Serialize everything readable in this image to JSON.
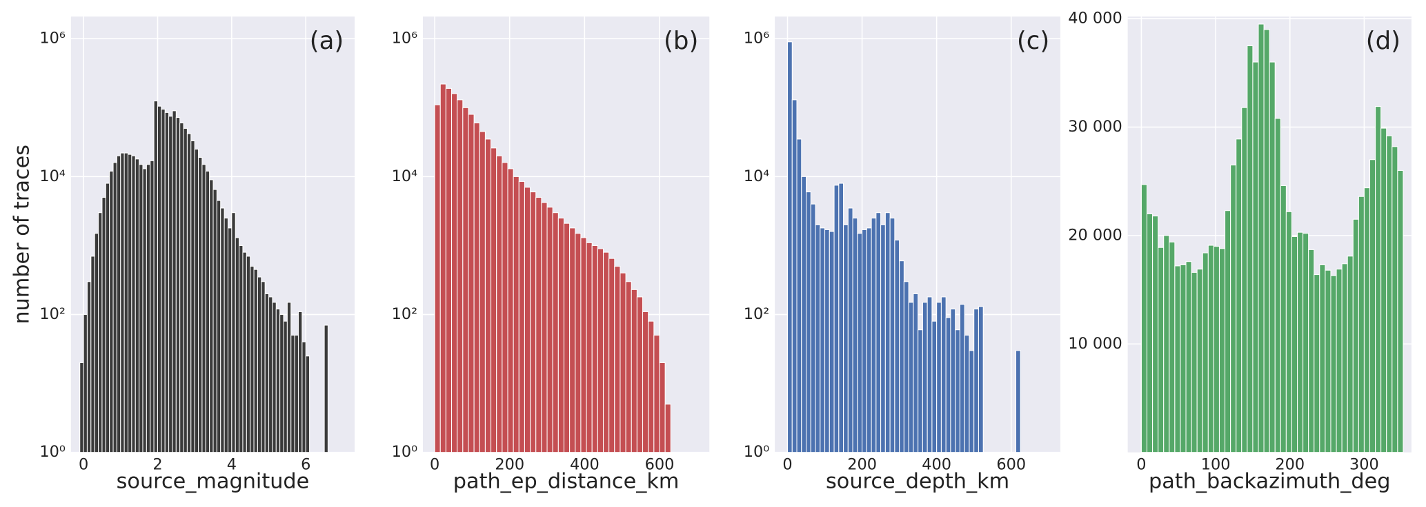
{
  "chart_data": [
    {
      "type": "histogram",
      "xlabel": "source_magnitude",
      "ylabel": "number of traces",
      "annotation": "(a)",
      "color": "#3a3a3a",
      "log_scale": true,
      "grid": true,
      "bins": [
        -0.1,
        0,
        0.1,
        0.2,
        0.3,
        0.4,
        0.5,
        0.6,
        0.7,
        0.8,
        0.9,
        1,
        1.1,
        1.2,
        1.3,
        1.4,
        1.5,
        1.6,
        1.7,
        1.8,
        1.9,
        2,
        2.1,
        2.2,
        2.3,
        2.4,
        2.5,
        2.6,
        2.7,
        2.8,
        2.9,
        3,
        3.1,
        3.2,
        3.3,
        3.4,
        3.5,
        3.6,
        3.7,
        3.8,
        3.9,
        4,
        4.1,
        4.2,
        4.3,
        4.4,
        4.5,
        4.6,
        4.7,
        4.8,
        4.9,
        5,
        5.1,
        5.2,
        5.3,
        5.4,
        5.5,
        5.6,
        5.7,
        5.8,
        5.9,
        6,
        6.1,
        6.2,
        6.3,
        6.4,
        6.5,
        6.6
      ],
      "values": [
        20,
        100,
        300,
        700,
        1500,
        3000,
        5000,
        8000,
        12000,
        16000,
        20000,
        22000,
        22000,
        21000,
        20000,
        18000,
        15000,
        13000,
        15000,
        17000,
        125000,
        105000,
        95000,
        85000,
        75000,
        90000,
        72000,
        60000,
        50000,
        42000,
        33000,
        25000,
        19000,
        15000,
        12000,
        9000,
        6500,
        4500,
        3500,
        2500,
        1800,
        3000,
        1300,
        1000,
        800,
        700,
        500,
        450,
        350,
        300,
        200,
        180,
        150,
        120,
        100,
        80,
        150,
        50,
        50,
        110,
        40,
        25,
        0,
        0,
        0,
        0,
        70
      ],
      "xlim": [
        -0.34,
        7.32
      ],
      "xticks": [
        0,
        2,
        4,
        6
      ],
      "ylim": [
        1,
        2100000
      ],
      "yticks": [
        {
          "value": 1,
          "label": "10⁰"
        },
        {
          "value": 100,
          "label": "10²"
        },
        {
          "value": 10000,
          "label": "10⁴"
        },
        {
          "value": 1000000,
          "label": "10⁶"
        }
      ]
    },
    {
      "type": "histogram",
      "xlabel": "path_ep_distance_km",
      "annotation": "(b)",
      "color": "#c44e52",
      "log_scale": true,
      "grid": true,
      "bins": [
        0,
        15,
        30,
        45,
        60,
        75,
        90,
        105,
        120,
        135,
        150,
        165,
        180,
        195,
        210,
        225,
        240,
        255,
        270,
        285,
        300,
        315,
        330,
        345,
        360,
        375,
        390,
        405,
        420,
        435,
        450,
        465,
        480,
        495,
        510,
        525,
        540,
        555,
        570,
        585,
        600,
        615,
        630
      ],
      "values": [
        110000,
        220000,
        190000,
        160000,
        130000,
        100000,
        80000,
        60000,
        45000,
        35000,
        26000,
        20000,
        16000,
        13000,
        10000,
        8500,
        7000,
        6000,
        5000,
        4200,
        3600,
        3000,
        2500,
        2100,
        1800,
        1500,
        1300,
        1100,
        1000,
        900,
        800,
        650,
        500,
        400,
        300,
        230,
        180,
        110,
        80,
        50,
        20,
        5
      ],
      "xlim": [
        -31.5,
        733
      ],
      "xticks": [
        0,
        200,
        400,
        600
      ],
      "ylim": [
        1,
        2100000
      ],
      "yticks": [
        {
          "value": 1,
          "label": "10⁰"
        },
        {
          "value": 100,
          "label": "10²"
        },
        {
          "value": 10000,
          "label": "10⁴"
        },
        {
          "value": 1000000,
          "label": "10⁶"
        }
      ]
    },
    {
      "type": "histogram",
      "xlabel": "source_depth_km",
      "annotation": "(c)",
      "color": "#4c72b0",
      "log_scale": true,
      "grid": true,
      "bins": [
        0,
        12.5,
        25,
        37.5,
        50,
        62.5,
        75,
        87.5,
        100,
        112.5,
        125,
        137.5,
        150,
        162.5,
        175,
        187.5,
        200,
        212.5,
        225,
        237.5,
        250,
        262.5,
        275,
        287.5,
        300,
        312.5,
        325,
        337.5,
        350,
        362.5,
        375,
        387.5,
        400,
        412.5,
        425,
        437.5,
        450,
        462.5,
        475,
        487.5,
        500,
        512.5,
        525,
        537.5,
        550,
        562.5,
        575,
        587.5,
        600,
        612.5,
        625
      ],
      "values": [
        900000,
        130000,
        35000,
        10000,
        6000,
        4000,
        2000,
        1800,
        1700,
        1600,
        7500,
        8000,
        2000,
        3500,
        2500,
        1500,
        1700,
        1800,
        2500,
        3000,
        2000,
        3000,
        2500,
        1200,
        600,
        300,
        150,
        200,
        60,
        150,
        180,
        80,
        150,
        180,
        90,
        120,
        60,
        140,
        50,
        30,
        120,
        130,
        0,
        0,
        0,
        0,
        0,
        0,
        0,
        30
      ],
      "xlim": [
        -34,
        732
      ],
      "xticks": [
        0,
        200,
        400,
        600
      ],
      "ylim": [
        1,
        2100000
      ],
      "yticks": [
        {
          "value": 1,
          "label": "10⁰"
        },
        {
          "value": 100,
          "label": "10²"
        },
        {
          "value": 10000,
          "label": "10⁴"
        },
        {
          "value": 1000000,
          "label": "10⁶"
        }
      ]
    },
    {
      "type": "histogram",
      "xlabel": "path_backazimuth_deg",
      "annotation": "(d)",
      "color": "#55a868",
      "log_scale": false,
      "grid": true,
      "bins": [
        0,
        7.5,
        15,
        22.5,
        30,
        37.5,
        45,
        52.5,
        60,
        67.5,
        75,
        82.5,
        90,
        97.5,
        105,
        112.5,
        120,
        127.5,
        135,
        142.5,
        150,
        157.5,
        165,
        172.5,
        180,
        187.5,
        195,
        202.5,
        210,
        217.5,
        225,
        232.5,
        240,
        247.5,
        255,
        262.5,
        270,
        277.5,
        285,
        292.5,
        300,
        307.5,
        315,
        322.5,
        330,
        337.5,
        345,
        352.5
      ],
      "values": [
        24700,
        22000,
        21800,
        18900,
        20000,
        19400,
        17200,
        17300,
        17600,
        16600,
        16900,
        18400,
        19100,
        19000,
        18800,
        22300,
        26500,
        28900,
        31800,
        37500,
        36000,
        39500,
        39000,
        36000,
        30800,
        24600,
        22200,
        19900,
        20300,
        20200,
        18700,
        16400,
        17300,
        16800,
        16300,
        16900,
        17400,
        18100,
        21500,
        23600,
        24400,
        27000,
        31900,
        29900,
        29200,
        28200,
        26000
      ],
      "xlim": [
        -18.4,
        363.6
      ],
      "xticks": [
        0,
        100,
        200,
        300
      ],
      "ylim": [
        0,
        40200
      ],
      "yticks": [
        {
          "value": 10000,
          "label": "10 000"
        },
        {
          "value": 20000,
          "label": "20 000"
        },
        {
          "value": 30000,
          "label": "30 000"
        },
        {
          "value": 40000,
          "label": "40 000"
        }
      ]
    }
  ]
}
